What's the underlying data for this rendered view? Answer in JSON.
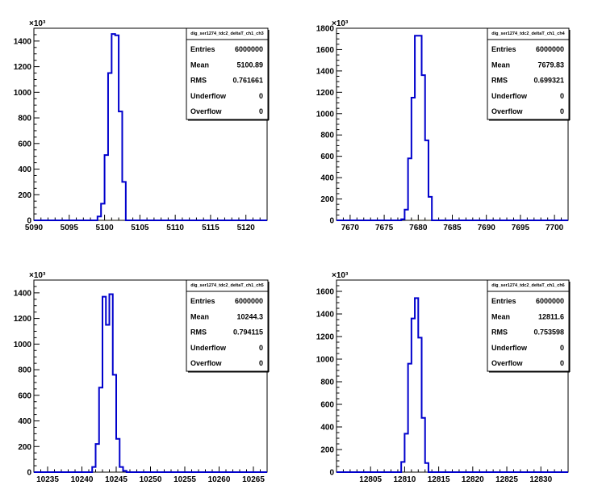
{
  "chart_data": [
    {
      "type": "histogram",
      "exponent_label": "×10³",
      "y_unit": 1000,
      "xlim": [
        5090,
        5123
      ],
      "ylim": [
        0,
        1500
      ],
      "x_ticks": [
        5090,
        5095,
        5100,
        5105,
        5110,
        5115,
        5120
      ],
      "y_ticks": [
        0,
        200,
        400,
        600,
        800,
        1000,
        1200,
        1400
      ],
      "bin_edges": [
        5099,
        5099.5,
        5100,
        5100.5,
        5101,
        5101.5,
        5102,
        5102.5,
        5103
      ],
      "counts": [
        30000,
        130000,
        510000,
        1150000,
        1455000,
        1445000,
        850000,
        300000
      ],
      "stats": {
        "title": "dig_ser1274_tdc2_deltaT_ch1_ch3",
        "rows": [
          {
            "label": "Entries",
            "value": "6000000"
          },
          {
            "label": "Mean",
            "value": "5100.89"
          },
          {
            "label": "RMS",
            "value": "0.761661"
          },
          {
            "label": "Underflow",
            "value": "0"
          },
          {
            "label": "Overflow",
            "value": "0"
          }
        ]
      }
    },
    {
      "type": "histogram",
      "exponent_label": "×10³",
      "y_unit": 1000,
      "xlim": [
        7668,
        7702
      ],
      "ylim": [
        0,
        1800
      ],
      "x_ticks": [
        7670,
        7675,
        7680,
        7685,
        7690,
        7695,
        7700
      ],
      "y_ticks": [
        0,
        200,
        400,
        600,
        800,
        1000,
        1200,
        1400,
        1600,
        1800
      ],
      "bin_edges": [
        7677.5,
        7678,
        7678.5,
        7679,
        7679.5,
        7680,
        7680.5,
        7681,
        7681.5,
        7682
      ],
      "counts": [
        10000,
        100000,
        580000,
        1150000,
        1730000,
        1730000,
        1360000,
        750000,
        220000
      ],
      "stats": {
        "title": "dig_ser1274_tdc2_deltaT_ch1_ch4",
        "rows": [
          {
            "label": "Entries",
            "value": "6000000"
          },
          {
            "label": "Mean",
            "value": "7679.83"
          },
          {
            "label": "RMS",
            "value": "0.699321"
          },
          {
            "label": "Underflow",
            "value": "0"
          },
          {
            "label": "Overflow",
            "value": "0"
          }
        ]
      }
    },
    {
      "type": "histogram",
      "exponent_label": "×10³",
      "y_unit": 1000,
      "xlim": [
        10233,
        10267
      ],
      "ylim": [
        0,
        1500
      ],
      "x_ticks": [
        10235,
        10240,
        10245,
        10250,
        10255,
        10260,
        10265
      ],
      "y_ticks": [
        0,
        200,
        400,
        600,
        800,
        1000,
        1200,
        1400
      ],
      "bin_edges": [
        10241.5,
        10242,
        10242.5,
        10243,
        10243.5,
        10244,
        10244.5,
        10245,
        10245.5,
        10246,
        10246.5
      ],
      "counts": [
        40000,
        220000,
        660000,
        1370000,
        1150000,
        1390000,
        760000,
        260000,
        40000,
        10000
      ],
      "stats": {
        "title": "dig_ser1274_tdc2_deltaT_ch1_ch5",
        "rows": [
          {
            "label": "Entries",
            "value": "6000000"
          },
          {
            "label": "Mean",
            "value": "10244.3"
          },
          {
            "label": "RMS",
            "value": "0.794115"
          },
          {
            "label": "Underflow",
            "value": "0"
          },
          {
            "label": "Overflow",
            "value": "0"
          }
        ]
      }
    },
    {
      "type": "histogram",
      "exponent_label": "×10³",
      "y_unit": 1000,
      "xlim": [
        12800,
        12834
      ],
      "ylim": [
        0,
        1700
      ],
      "x_ticks": [
        12805,
        12810,
        12815,
        12820,
        12825,
        12830
      ],
      "y_ticks": [
        0,
        200,
        400,
        600,
        800,
        1000,
        1200,
        1400,
        1600
      ],
      "bin_edges": [
        12809.5,
        12810,
        12810.5,
        12811,
        12811.5,
        12812,
        12812.5,
        12813,
        12813.5
      ],
      "counts": [
        90000,
        340000,
        960000,
        1360000,
        1540000,
        1190000,
        480000,
        80000
      ],
      "stats": {
        "title": "dig_ser1274_tdc2_deltaT_ch1_ch6",
        "rows": [
          {
            "label": "Entries",
            "value": "6000000"
          },
          {
            "label": "Mean",
            "value": "12811.6"
          },
          {
            "label": "RMS",
            "value": "0.753598"
          },
          {
            "label": "Underflow",
            "value": "0"
          },
          {
            "label": "Overflow",
            "value": "0"
          }
        ]
      }
    }
  ],
  "colors": {
    "histogram_line": "#0000cc",
    "axis": "#000000",
    "background": "#ffffff"
  }
}
